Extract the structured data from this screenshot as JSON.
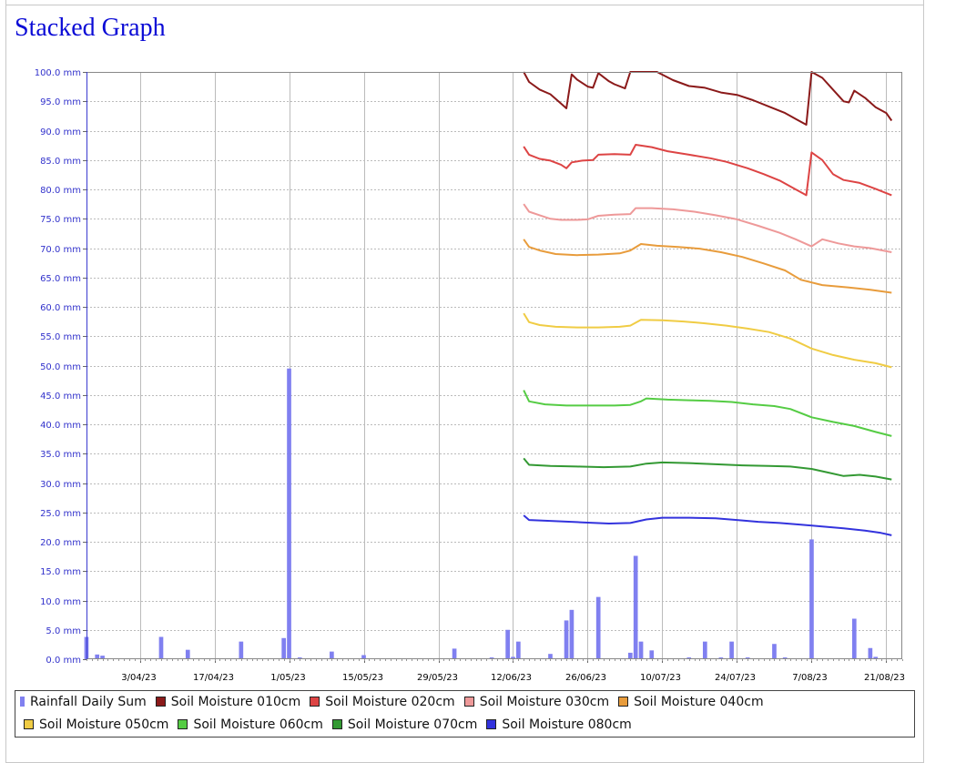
{
  "page": {
    "title": "Stacked Graph"
  },
  "chart_data": {
    "type": "line",
    "ylim": [
      0,
      100
    ],
    "y_ticks": [
      0,
      5,
      10,
      15,
      20,
      25,
      30,
      35,
      40,
      45,
      50,
      55,
      60,
      65,
      70,
      75,
      80,
      85,
      90,
      95,
      100
    ],
    "y_tick_labels": [
      "0.0 mm",
      "5.0 mm",
      "10.0 mm",
      "15.0 mm",
      "20.0 mm",
      "25.0 mm",
      "30.0 mm",
      "35.0 mm",
      "40.0 mm",
      "45.0 mm",
      "50.0 mm",
      "55.0 mm",
      "60.0 mm",
      "65.0 mm",
      "70.0 mm",
      "75.0 mm",
      "80.0 mm",
      "85.0 mm",
      "90.0 mm",
      "95.0 mm",
      "100.0 mm"
    ],
    "x_range": [
      "2023-03-24",
      "2023-08-24"
    ],
    "x_ticks": [
      "2023-04-03",
      "2023-04-17",
      "2023-05-01",
      "2023-05-15",
      "2023-05-29",
      "2023-06-12",
      "2023-06-26",
      "2023-07-10",
      "2023-07-24",
      "2023-08-07",
      "2023-08-21"
    ],
    "x_tick_labels": [
      "3/04/23",
      "17/04/23",
      "1/05/23",
      "15/05/23",
      "29/05/23",
      "12/06/23",
      "26/06/23",
      "10/07/23",
      "24/07/23",
      "7/08/23",
      "21/08/23"
    ],
    "grid": true,
    "legend_position": "bottom",
    "colors": {
      "plot_border": "#888888",
      "axis_label": "#3333cc",
      "grid": "#bbbbbb"
    },
    "series": [
      {
        "name": "Rainfall Daily Sum",
        "type": "bar",
        "color": "#8080f0",
        "points": [
          [
            "2023-03-24",
            3.8
          ],
          [
            "2023-03-26",
            0.8
          ],
          [
            "2023-03-27",
            0.6
          ],
          [
            "2023-04-07",
            3.8
          ],
          [
            "2023-04-12",
            1.6
          ],
          [
            "2023-04-22",
            3.0
          ],
          [
            "2023-04-30",
            3.6
          ],
          [
            "2023-05-01",
            49.5
          ],
          [
            "2023-05-03",
            0.3
          ],
          [
            "2023-05-09",
            1.3
          ],
          [
            "2023-05-15",
            0.7
          ],
          [
            "2023-06-01",
            1.8
          ],
          [
            "2023-06-08",
            0.3
          ],
          [
            "2023-06-11",
            5.0
          ],
          [
            "2023-06-12",
            0.4
          ],
          [
            "2023-06-13",
            3.0
          ],
          [
            "2023-06-19",
            0.9
          ],
          [
            "2023-06-22",
            6.6
          ],
          [
            "2023-06-23",
            8.4
          ],
          [
            "2023-06-28",
            10.6
          ],
          [
            "2023-07-04",
            1.1
          ],
          [
            "2023-07-05",
            17.6
          ],
          [
            "2023-07-06",
            3.0
          ],
          [
            "2023-07-08",
            1.5
          ],
          [
            "2023-07-15",
            0.3
          ],
          [
            "2023-07-18",
            3.0
          ],
          [
            "2023-07-21",
            0.3
          ],
          [
            "2023-07-23",
            3.0
          ],
          [
            "2023-07-26",
            0.3
          ],
          [
            "2023-07-31",
            2.6
          ],
          [
            "2023-08-02",
            0.3
          ],
          [
            "2023-08-07",
            20.4
          ],
          [
            "2023-08-15",
            6.9
          ],
          [
            "2023-08-18",
            1.9
          ],
          [
            "2023-08-19",
            0.4
          ]
        ]
      },
      {
        "name": "Soil Moisture 010cm",
        "type": "line",
        "color": "#8b1a1a",
        "points": [
          [
            "2023-06-14",
            100.0
          ],
          [
            "2023-06-15",
            98.3
          ],
          [
            "2023-06-17",
            97.0
          ],
          [
            "2023-06-19",
            96.2
          ],
          [
            "2023-06-21",
            94.6
          ],
          [
            "2023-06-22",
            93.8
          ],
          [
            "2023-06-23",
            99.6
          ],
          [
            "2023-06-24",
            98.7
          ],
          [
            "2023-06-26",
            97.5
          ],
          [
            "2023-06-27",
            97.3
          ],
          [
            "2023-06-28",
            99.8
          ],
          [
            "2023-06-30",
            98.4
          ],
          [
            "2023-07-01",
            97.9
          ],
          [
            "2023-07-03",
            97.2
          ],
          [
            "2023-07-04",
            100.0
          ],
          [
            "2023-07-09",
            100.0
          ],
          [
            "2023-07-12",
            98.6
          ],
          [
            "2023-07-15",
            97.6
          ],
          [
            "2023-07-18",
            97.3
          ],
          [
            "2023-07-21",
            96.5
          ],
          [
            "2023-07-24",
            96.1
          ],
          [
            "2023-07-27",
            95.2
          ],
          [
            "2023-07-30",
            94.1
          ],
          [
            "2023-08-02",
            93.0
          ],
          [
            "2023-08-04",
            92.0
          ],
          [
            "2023-08-06",
            91.0
          ],
          [
            "2023-08-07",
            100.0
          ],
          [
            "2023-08-09",
            99.0
          ],
          [
            "2023-08-11",
            97.0
          ],
          [
            "2023-08-13",
            95.0
          ],
          [
            "2023-08-14",
            94.8
          ],
          [
            "2023-08-15",
            96.8
          ],
          [
            "2023-08-17",
            95.6
          ],
          [
            "2023-08-19",
            94.0
          ],
          [
            "2023-08-21",
            93.0
          ],
          [
            "2023-08-22",
            91.7
          ]
        ]
      },
      {
        "name": "Soil Moisture 020cm",
        "type": "line",
        "color": "#dd4444",
        "points": [
          [
            "2023-06-14",
            87.3
          ],
          [
            "2023-06-15",
            85.9
          ],
          [
            "2023-06-17",
            85.2
          ],
          [
            "2023-06-19",
            84.9
          ],
          [
            "2023-06-21",
            84.2
          ],
          [
            "2023-06-22",
            83.6
          ],
          [
            "2023-06-23",
            84.6
          ],
          [
            "2023-06-25",
            84.9
          ],
          [
            "2023-06-27",
            85.0
          ],
          [
            "2023-06-28",
            85.9
          ],
          [
            "2023-07-01",
            86.0
          ],
          [
            "2023-07-04",
            85.9
          ],
          [
            "2023-07-05",
            87.6
          ],
          [
            "2023-07-08",
            87.2
          ],
          [
            "2023-07-11",
            86.5
          ],
          [
            "2023-07-15",
            85.9
          ],
          [
            "2023-07-19",
            85.3
          ],
          [
            "2023-07-22",
            84.7
          ],
          [
            "2023-07-26",
            83.6
          ],
          [
            "2023-07-29",
            82.6
          ],
          [
            "2023-08-01",
            81.5
          ],
          [
            "2023-08-04",
            80.0
          ],
          [
            "2023-08-06",
            79.0
          ],
          [
            "2023-08-07",
            86.3
          ],
          [
            "2023-08-09",
            85.0
          ],
          [
            "2023-08-11",
            82.6
          ],
          [
            "2023-08-13",
            81.6
          ],
          [
            "2023-08-16",
            81.1
          ],
          [
            "2023-08-19",
            80.1
          ],
          [
            "2023-08-22",
            79.0
          ]
        ]
      },
      {
        "name": "Soil Moisture 030cm",
        "type": "line",
        "color": "#ee9999",
        "points": [
          [
            "2023-06-14",
            77.5
          ],
          [
            "2023-06-15",
            76.2
          ],
          [
            "2023-06-17",
            75.6
          ],
          [
            "2023-06-19",
            75.0
          ],
          [
            "2023-06-21",
            74.8
          ],
          [
            "2023-06-24",
            74.8
          ],
          [
            "2023-06-26",
            74.9
          ],
          [
            "2023-06-28",
            75.5
          ],
          [
            "2023-07-01",
            75.7
          ],
          [
            "2023-07-04",
            75.8
          ],
          [
            "2023-07-05",
            76.8
          ],
          [
            "2023-07-08",
            76.8
          ],
          [
            "2023-07-12",
            76.6
          ],
          [
            "2023-07-16",
            76.2
          ],
          [
            "2023-07-20",
            75.6
          ],
          [
            "2023-07-24",
            74.9
          ],
          [
            "2023-07-28",
            73.8
          ],
          [
            "2023-08-01",
            72.6
          ],
          [
            "2023-08-04",
            71.5
          ],
          [
            "2023-08-07",
            70.3
          ],
          [
            "2023-08-09",
            71.5
          ],
          [
            "2023-08-12",
            70.8
          ],
          [
            "2023-08-15",
            70.3
          ],
          [
            "2023-08-18",
            70.0
          ],
          [
            "2023-08-22",
            69.3
          ]
        ]
      },
      {
        "name": "Soil Moisture 040cm",
        "type": "line",
        "color": "#e89c3c",
        "points": [
          [
            "2023-06-14",
            71.5
          ],
          [
            "2023-06-15",
            70.2
          ],
          [
            "2023-06-17",
            69.6
          ],
          [
            "2023-06-20",
            69.0
          ],
          [
            "2023-06-24",
            68.8
          ],
          [
            "2023-06-28",
            68.9
          ],
          [
            "2023-07-02",
            69.1
          ],
          [
            "2023-07-04",
            69.6
          ],
          [
            "2023-07-06",
            70.7
          ],
          [
            "2023-07-09",
            70.4
          ],
          [
            "2023-07-13",
            70.2
          ],
          [
            "2023-07-17",
            69.9
          ],
          [
            "2023-07-21",
            69.3
          ],
          [
            "2023-07-25",
            68.5
          ],
          [
            "2023-07-29",
            67.4
          ],
          [
            "2023-08-02",
            66.2
          ],
          [
            "2023-08-05",
            64.6
          ],
          [
            "2023-08-09",
            63.7
          ],
          [
            "2023-08-14",
            63.3
          ],
          [
            "2023-08-18",
            62.9
          ],
          [
            "2023-08-22",
            62.4
          ]
        ]
      },
      {
        "name": "Soil Moisture 050cm",
        "type": "line",
        "color": "#f0cc44",
        "points": [
          [
            "2023-06-14",
            58.9
          ],
          [
            "2023-06-15",
            57.4
          ],
          [
            "2023-06-17",
            56.9
          ],
          [
            "2023-06-20",
            56.6
          ],
          [
            "2023-06-24",
            56.5
          ],
          [
            "2023-06-28",
            56.5
          ],
          [
            "2023-07-02",
            56.6
          ],
          [
            "2023-07-04",
            56.8
          ],
          [
            "2023-07-06",
            57.8
          ],
          [
            "2023-07-10",
            57.7
          ],
          [
            "2023-07-14",
            57.5
          ],
          [
            "2023-07-18",
            57.2
          ],
          [
            "2023-07-22",
            56.8
          ],
          [
            "2023-07-26",
            56.3
          ],
          [
            "2023-07-30",
            55.7
          ],
          [
            "2023-08-03",
            54.6
          ],
          [
            "2023-08-07",
            52.9
          ],
          [
            "2023-08-11",
            51.8
          ],
          [
            "2023-08-15",
            51.0
          ],
          [
            "2023-08-19",
            50.4
          ],
          [
            "2023-08-22",
            49.7
          ]
        ]
      },
      {
        "name": "Soil Moisture 060cm",
        "type": "line",
        "color": "#55cc44",
        "points": [
          [
            "2023-06-14",
            45.8
          ],
          [
            "2023-06-15",
            43.9
          ],
          [
            "2023-06-18",
            43.4
          ],
          [
            "2023-06-22",
            43.2
          ],
          [
            "2023-06-26",
            43.2
          ],
          [
            "2023-07-01",
            43.2
          ],
          [
            "2023-07-04",
            43.3
          ],
          [
            "2023-07-06",
            43.9
          ],
          [
            "2023-07-07",
            44.4
          ],
          [
            "2023-07-11",
            44.2
          ],
          [
            "2023-07-15",
            44.1
          ],
          [
            "2023-07-19",
            44.0
          ],
          [
            "2023-07-23",
            43.8
          ],
          [
            "2023-07-27",
            43.4
          ],
          [
            "2023-07-31",
            43.1
          ],
          [
            "2023-08-03",
            42.6
          ],
          [
            "2023-08-07",
            41.2
          ],
          [
            "2023-08-11",
            40.4
          ],
          [
            "2023-08-15",
            39.7
          ],
          [
            "2023-08-19",
            38.7
          ],
          [
            "2023-08-22",
            38.0
          ]
        ]
      },
      {
        "name": "Soil Moisture 070cm",
        "type": "line",
        "color": "#339933",
        "points": [
          [
            "2023-06-14",
            34.2
          ],
          [
            "2023-06-15",
            33.1
          ],
          [
            "2023-06-19",
            32.9
          ],
          [
            "2023-06-24",
            32.8
          ],
          [
            "2023-06-29",
            32.7
          ],
          [
            "2023-07-04",
            32.8
          ],
          [
            "2023-07-07",
            33.3
          ],
          [
            "2023-07-10",
            33.5
          ],
          [
            "2023-07-15",
            33.4
          ],
          [
            "2023-07-20",
            33.2
          ],
          [
            "2023-07-25",
            33.0
          ],
          [
            "2023-07-30",
            32.9
          ],
          [
            "2023-08-03",
            32.8
          ],
          [
            "2023-08-07",
            32.4
          ],
          [
            "2023-08-10",
            31.8
          ],
          [
            "2023-08-13",
            31.2
          ],
          [
            "2023-08-16",
            31.4
          ],
          [
            "2023-08-19",
            31.1
          ],
          [
            "2023-08-22",
            30.6
          ]
        ]
      },
      {
        "name": "Soil Moisture 080cm",
        "type": "line",
        "color": "#3333dd",
        "points": [
          [
            "2023-06-14",
            24.5
          ],
          [
            "2023-06-15",
            23.7
          ],
          [
            "2023-06-20",
            23.5
          ],
          [
            "2023-06-25",
            23.3
          ],
          [
            "2023-06-30",
            23.1
          ],
          [
            "2023-07-04",
            23.2
          ],
          [
            "2023-07-07",
            23.8
          ],
          [
            "2023-07-10",
            24.1
          ],
          [
            "2023-07-15",
            24.1
          ],
          [
            "2023-07-20",
            24.0
          ],
          [
            "2023-07-24",
            23.7
          ],
          [
            "2023-07-28",
            23.4
          ],
          [
            "2023-08-01",
            23.2
          ],
          [
            "2023-08-05",
            22.9
          ],
          [
            "2023-08-09",
            22.6
          ],
          [
            "2023-08-13",
            22.3
          ],
          [
            "2023-08-17",
            21.9
          ],
          [
            "2023-08-20",
            21.5
          ],
          [
            "2023-08-22",
            21.1
          ]
        ]
      }
    ]
  }
}
